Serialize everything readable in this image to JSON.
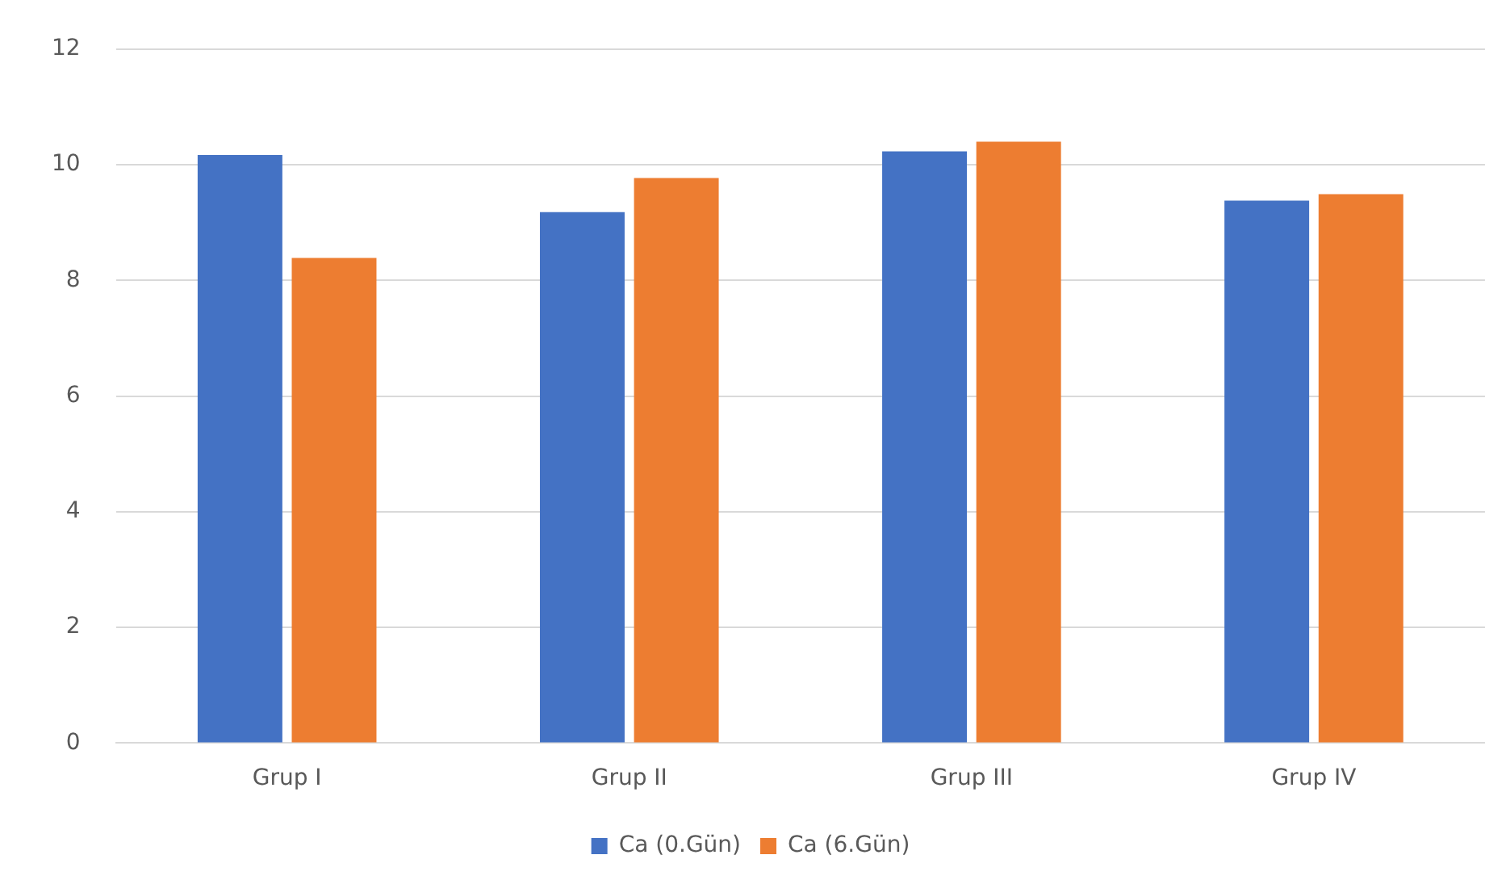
{
  "chart_data": {
    "type": "bar",
    "categories": [
      "Grup I",
      "Grup II",
      "Grup III",
      "Grup IV"
    ],
    "series": [
      {
        "name": "Ca (0.Gün)",
        "color": "#4472c4",
        "values": [
          10.17,
          9.18,
          10.23,
          9.38
        ]
      },
      {
        "name": "Ca (6.Gün)",
        "color": "#ed7d31",
        "values": [
          8.39,
          9.77,
          10.4,
          9.49
        ]
      }
    ],
    "ylim": [
      0,
      12
    ],
    "yticks": [
      0,
      2,
      4,
      6,
      8,
      10,
      12
    ],
    "grid": "y",
    "legend": "bottom"
  }
}
